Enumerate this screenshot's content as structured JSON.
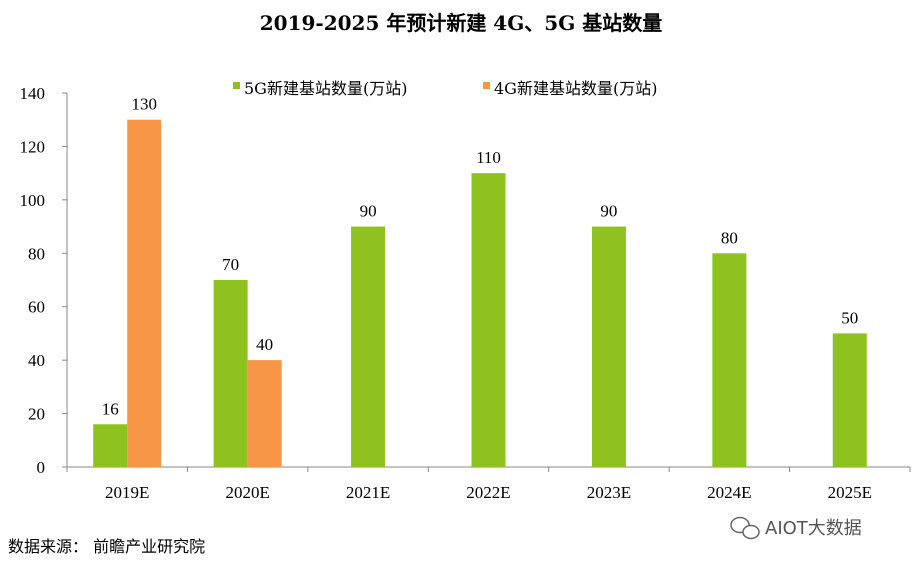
{
  "chart_data": {
    "type": "bar",
    "title": "2019-2025 年预计新建 4G、5G 基站数量",
    "categories": [
      "2019E",
      "2020E",
      "2021E",
      "2022E",
      "2023E",
      "2024E",
      "2025E"
    ],
    "series": [
      {
        "name": "5G新建基站数量(万站)",
        "color": "#8dc21f",
        "values": [
          16,
          70,
          90,
          110,
          90,
          80,
          50
        ]
      },
      {
        "name": "4G新建基站数量(万站)",
        "color": "#f79646",
        "values": [
          130,
          40,
          null,
          null,
          null,
          null,
          null
        ]
      }
    ],
    "ylim": [
      0,
      140
    ],
    "yticks": [
      0,
      20,
      40,
      60,
      80,
      100,
      120,
      140
    ],
    "grid": false,
    "legend_position": "top-center"
  },
  "source": "数据来源： 前瞻产业研究院",
  "watermark": "AIOT大数据"
}
